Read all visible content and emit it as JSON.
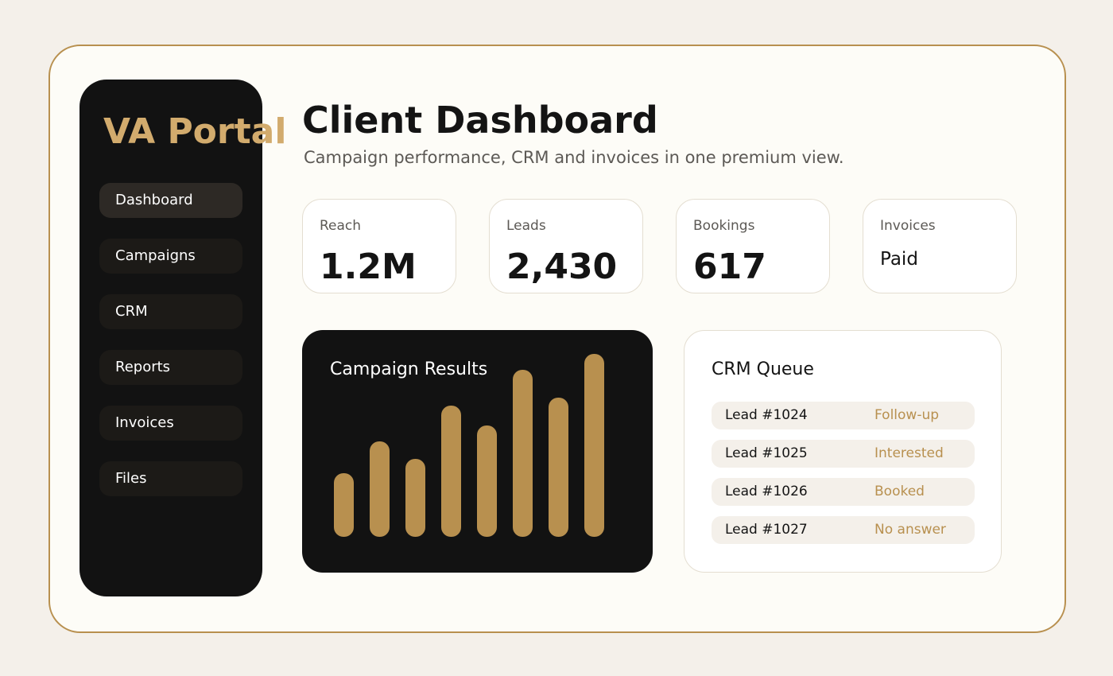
{
  "colors": {
    "page_background": "#f4f0ea",
    "frame_background": "#fdfcf7",
    "accent_gold": "#b8904f",
    "brand_gold": "#d2ab6d",
    "sidebar_dark": "#121212",
    "active_nav": "#2d2925"
  },
  "sidebar": {
    "brand": "VA Portal",
    "items": [
      {
        "label": "Dashboard",
        "active": true
      },
      {
        "label": "Campaigns",
        "active": false
      },
      {
        "label": "CRM",
        "active": false
      },
      {
        "label": "Reports",
        "active": false
      },
      {
        "label": "Invoices",
        "active": false
      },
      {
        "label": "Files",
        "active": false
      }
    ]
  },
  "header": {
    "title": "Client Dashboard",
    "subtitle": "Campaign performance, CRM and invoices in one premium view."
  },
  "stats": [
    {
      "label": "Reach",
      "value": "1.2M"
    },
    {
      "label": "Leads",
      "value": "2,430"
    },
    {
      "label": "Bookings",
      "value": "617"
    },
    {
      "label": "Invoices",
      "value": "Paid"
    }
  ],
  "chart_data": {
    "type": "bar",
    "title": "Campaign Results",
    "values": [
      80,
      120,
      98,
      165,
      140,
      210,
      175,
      230
    ],
    "color": "#b8904f",
    "ylim": [
      0,
      240
    ]
  },
  "crm": {
    "title": "CRM Queue",
    "rows": [
      {
        "lead": "Lead #1024",
        "status": "Follow-up"
      },
      {
        "lead": "Lead #1025",
        "status": "Interested"
      },
      {
        "lead": "Lead #1026",
        "status": "Booked"
      },
      {
        "lead": "Lead #1027",
        "status": "No answer"
      }
    ]
  }
}
